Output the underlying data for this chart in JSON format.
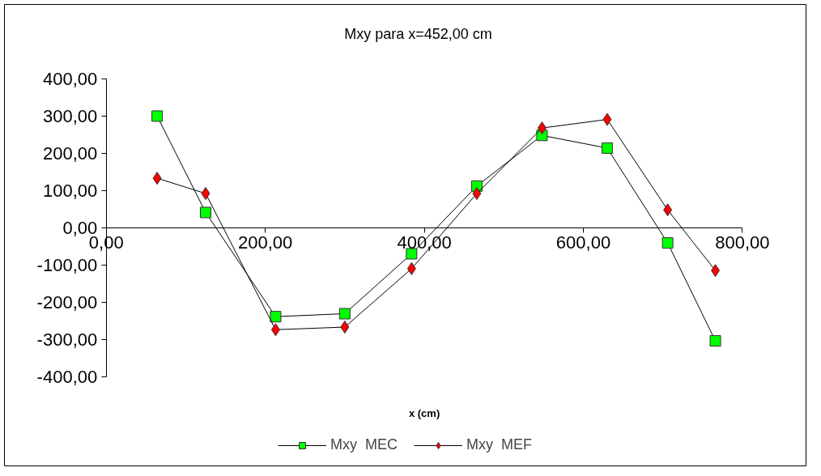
{
  "chart_data": {
    "type": "line",
    "title": "Mxy    para x=452,00 cm",
    "xlabel": "x (cm)",
    "xlim": [
      0,
      800
    ],
    "xticks": [
      {
        "value": 0,
        "label": "0,00"
      },
      {
        "value": 200,
        "label": "200,00"
      },
      {
        "value": 400,
        "label": "400,00"
      },
      {
        "value": 600,
        "label": "600,00"
      },
      {
        "value": 800,
        "label": "800,00"
      }
    ],
    "ylim": [
      -400,
      400
    ],
    "yticks": [
      {
        "value": -400,
        "label": "-400,00"
      },
      {
        "value": -300,
        "label": "-300,00"
      },
      {
        "value": -200,
        "label": "-200,00"
      },
      {
        "value": -100,
        "label": "-100,00"
      },
      {
        "value": 0,
        "label": "0,00"
      },
      {
        "value": 100,
        "label": "100,00"
      },
      {
        "value": 200,
        "label": "200,00"
      },
      {
        "value": 300,
        "label": "300,00"
      },
      {
        "value": 400,
        "label": "400,00"
      }
    ],
    "x": [
      64,
      125,
      213,
      300,
      384,
      466,
      548,
      630,
      706,
      766
    ],
    "series": [
      {
        "name": "Mxy  MEC",
        "color": "#00ff00",
        "marker": "square",
        "values": [
          300,
          41,
          -239,
          -231,
          -70,
          112,
          248,
          214,
          -41,
          -304
        ]
      },
      {
        "name": "Mxy  MEF",
        "color": "#ff0000",
        "marker": "diamond",
        "values": [
          133,
          92,
          -274,
          -267,
          -110,
          92,
          268,
          291,
          48,
          -115
        ]
      }
    ],
    "grid": false,
    "legend": "bottom",
    "line_style": "solid"
  }
}
